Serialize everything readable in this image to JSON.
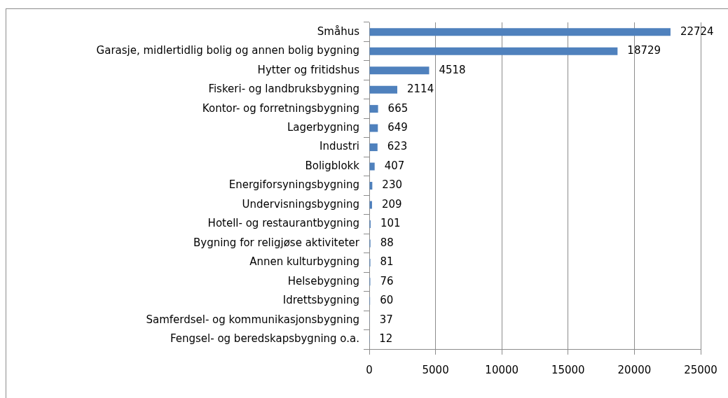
{
  "chart_data": {
    "type": "bar",
    "orientation": "horizontal",
    "categories": [
      "Småhus",
      "Garasje, midlertidlig bolig og annen bolig bygning",
      "Hytter og fritidshus",
      "Fiskeri- og landbruksbygning",
      "Kontor- og forretningsbygning",
      "Lagerbygning",
      "Industri",
      "Boligblokk",
      "Energiforsyningsbygning",
      "Undervisningsbygning",
      "Hotell- og restaurantbygning",
      "Bygning for religjøse aktiviteter",
      "Annen kulturbygning",
      "Helsebygning",
      "Idrettsbygning",
      "Samferdsel- og kommunikasjonsbygning",
      "Fengsel- og beredskapsbygning o.a."
    ],
    "values": [
      22724,
      18729,
      4518,
      2114,
      665,
      649,
      623,
      407,
      230,
      209,
      101,
      88,
      81,
      76,
      60,
      37,
      12
    ],
    "color": "#4f81bd",
    "xlim": [
      0,
      25000
    ],
    "xticks": [
      0,
      5000,
      10000,
      15000,
      20000,
      25000
    ],
    "grid": "x",
    "data_labels": true
  }
}
